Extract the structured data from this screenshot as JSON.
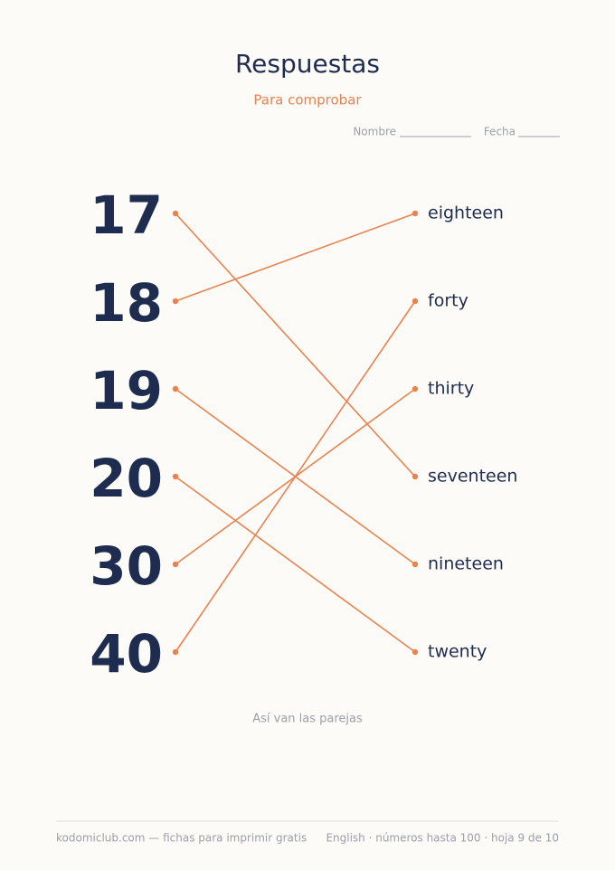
{
  "header": {
    "title": "Respuestas",
    "subtitle": "Para comprobar",
    "name_label": "Nombre",
    "date_label": "Fecha"
  },
  "numbers": [
    "17",
    "18",
    "19",
    "20",
    "30",
    "40"
  ],
  "words": [
    "eighteen",
    "forty",
    "thirty",
    "seventeen",
    "nineteen",
    "twenty"
  ],
  "caption": "Así van las parejas",
  "footer": {
    "left": "kodomiclub.com — fichas para imprimir gratis",
    "right": "English · números hasta 100 · hoja 9 de 10"
  }
}
